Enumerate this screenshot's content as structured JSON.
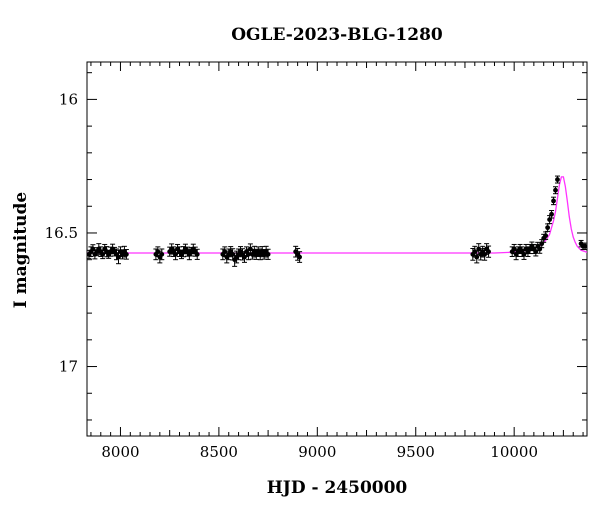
{
  "chart_data": {
    "type": "scatter",
    "title": "OGLE-2023-BLG-1280",
    "xlabel": "HJD - 2450000",
    "ylabel": "I magnitude",
    "xlim": [
      7830,
      10370
    ],
    "ylim": [
      17.26,
      15.86
    ],
    "y_inverted": true,
    "x_ticks": [
      8000,
      8500,
      9000,
      9500,
      10000
    ],
    "x_tick_labels": [
      "8000",
      "8500",
      "9000",
      "9500",
      "10000"
    ],
    "y_ticks": [
      16,
      16.5,
      17
    ],
    "y_tick_labels": [
      "16",
      "16.5",
      "17"
    ],
    "grid": false,
    "colors": {
      "points": "#000000",
      "model": "#ff33ff"
    },
    "series": [
      {
        "kind": "points",
        "x": [
          7840,
          7850,
          7860,
          7870,
          7880,
          7890,
          7900,
          7910,
          7920,
          7930,
          7940,
          7950,
          7960,
          7970,
          7980,
          7990,
          8000,
          8010,
          8020,
          8030,
          8180,
          8190,
          8200,
          8210,
          8250,
          8260,
          8270,
          8280,
          8290,
          8300,
          8310,
          8320,
          8330,
          8340,
          8350,
          8360,
          8370,
          8380,
          8390,
          8520,
          8530,
          8540,
          8550,
          8560,
          8570,
          8580,
          8590,
          8600,
          8610,
          8620,
          8630,
          8640,
          8650,
          8660,
          8670,
          8680,
          8690,
          8700,
          8710,
          8720,
          8730,
          8740,
          8750,
          8890,
          8900,
          8910,
          9790,
          9800,
          9810,
          9820,
          9830,
          9840,
          9850,
          9860,
          9870,
          9990,
          10000,
          10010,
          10020,
          10030,
          10040,
          10050,
          10060,
          10070,
          10080,
          10090,
          10100,
          10110,
          10120,
          10130,
          10140,
          10150,
          10160,
          10170,
          10180,
          10190,
          10200,
          10210,
          10220,
          10340,
          10350,
          10360
        ],
        "y": [
          16.58,
          16.57,
          16.56,
          16.58,
          16.57,
          16.56,
          16.57,
          16.58,
          16.56,
          16.57,
          16.58,
          16.57,
          16.56,
          16.57,
          16.58,
          16.59,
          16.57,
          16.58,
          16.57,
          16.58,
          16.58,
          16.57,
          16.59,
          16.58,
          16.57,
          16.56,
          16.57,
          16.58,
          16.56,
          16.57,
          16.58,
          16.57,
          16.56,
          16.57,
          16.58,
          16.57,
          16.56,
          16.57,
          16.58,
          16.58,
          16.57,
          16.59,
          16.58,
          16.57,
          16.58,
          16.6,
          16.59,
          16.58,
          16.57,
          16.58,
          16.59,
          16.57,
          16.58,
          16.56,
          16.58,
          16.57,
          16.58,
          16.57,
          16.58,
          16.57,
          16.58,
          16.57,
          16.58,
          16.57,
          16.58,
          16.59,
          16.58,
          16.57,
          16.59,
          16.56,
          16.58,
          16.57,
          16.58,
          16.56,
          16.57,
          16.57,
          16.56,
          16.58,
          16.57,
          16.56,
          16.57,
          16.58,
          16.56,
          16.57,
          16.56,
          16.55,
          16.56,
          16.57,
          16.55,
          16.56,
          16.54,
          16.52,
          16.51,
          16.48,
          16.45,
          16.43,
          16.38,
          16.34,
          16.3,
          16.54,
          16.55,
          16.55
        ],
        "err": [
          0.015,
          0.018,
          0.016,
          0.017,
          0.015,
          0.02,
          0.018,
          0.016,
          0.017,
          0.019,
          0.015,
          0.017,
          0.018,
          0.016,
          0.02,
          0.025,
          0.018,
          0.017,
          0.02,
          0.018,
          0.02,
          0.018,
          0.022,
          0.02,
          0.017,
          0.019,
          0.018,
          0.02,
          0.017,
          0.018,
          0.016,
          0.019,
          0.018,
          0.017,
          0.02,
          0.016,
          0.018,
          0.017,
          0.019,
          0.02,
          0.018,
          0.022,
          0.02,
          0.019,
          0.021,
          0.025,
          0.022,
          0.02,
          0.019,
          0.021,
          0.02,
          0.018,
          0.02,
          0.019,
          0.018,
          0.02,
          0.019,
          0.018,
          0.02,
          0.019,
          0.018,
          0.02,
          0.019,
          0.02,
          0.022,
          0.02,
          0.022,
          0.02,
          0.022,
          0.02,
          0.021,
          0.02,
          0.022,
          0.02,
          0.021,
          0.018,
          0.017,
          0.02,
          0.018,
          0.017,
          0.018,
          0.019,
          0.017,
          0.018,
          0.017,
          0.016,
          0.017,
          0.016,
          0.015,
          0.016,
          0.015,
          0.015,
          0.014,
          0.014,
          0.015,
          0.014,
          0.014,
          0.013,
          0.013,
          0.012,
          0.012,
          0.012
        ]
      },
      {
        "kind": "model",
        "x": [
          7830,
          9900,
          10000,
          10050,
          10100,
          10130,
          10160,
          10180,
          10200,
          10210,
          10220,
          10230,
          10240,
          10250,
          10260,
          10270,
          10280,
          10290,
          10300,
          10310,
          10320,
          10340,
          10370
        ],
        "y": [
          16.575,
          16.575,
          16.572,
          16.567,
          16.558,
          16.548,
          16.528,
          16.505,
          16.455,
          16.42,
          16.37,
          16.32,
          16.29,
          16.29,
          16.325,
          16.38,
          16.44,
          16.485,
          16.515,
          16.535,
          16.55,
          16.565,
          16.572
        ]
      }
    ]
  }
}
